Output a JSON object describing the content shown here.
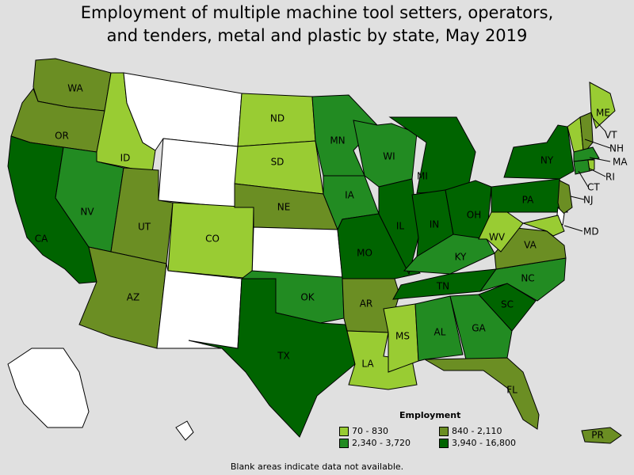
{
  "title_line1": "Employment of multiple machine tool setters, operators,",
  "title_line2": "and tenders, metal and plastic by state, May 2019",
  "legend": {
    "title": "Employment",
    "items": [
      {
        "label": "70 - 830",
        "color": "#99cc33",
        "key": "c1"
      },
      {
        "label": "840 - 2,110",
        "color": "#6b8e23",
        "key": "c2"
      },
      {
        "label": "2,340 - 3,720",
        "color": "#228b22",
        "key": "c3"
      },
      {
        "label": "3,940 - 16,800",
        "color": "#006400",
        "key": "c4"
      }
    ]
  },
  "colors": {
    "none": "#ffffff",
    "c1": "#99cc33",
    "c2": "#6b8e23",
    "c3": "#228b22",
    "c4": "#006400",
    "background": "#e0e0e0"
  },
  "footnote": "Blank areas indicate data not available.",
  "states": [
    {
      "abbr": "WA",
      "label": "WA",
      "cls": "c2"
    },
    {
      "abbr": "OR",
      "label": "OR",
      "cls": "c2"
    },
    {
      "abbr": "CA",
      "label": "CA",
      "cls": "c4"
    },
    {
      "abbr": "ID",
      "label": "ID",
      "cls": "c1"
    },
    {
      "abbr": "NV",
      "label": "NV",
      "cls": "c3"
    },
    {
      "abbr": "MT",
      "label": "",
      "cls": "none"
    },
    {
      "abbr": "WY",
      "label": "",
      "cls": "none"
    },
    {
      "abbr": "UT",
      "label": "UT",
      "cls": "c2"
    },
    {
      "abbr": "AZ",
      "label": "AZ",
      "cls": "c2"
    },
    {
      "abbr": "CO",
      "label": "CO",
      "cls": "c1"
    },
    {
      "abbr": "NM",
      "label": "",
      "cls": "none"
    },
    {
      "abbr": "ND",
      "label": "ND",
      "cls": "c1"
    },
    {
      "abbr": "SD",
      "label": "SD",
      "cls": "c1"
    },
    {
      "abbr": "NE",
      "label": "NE",
      "cls": "c2"
    },
    {
      "abbr": "KS",
      "label": "",
      "cls": "none"
    },
    {
      "abbr": "OK",
      "label": "OK",
      "cls": "c3"
    },
    {
      "abbr": "TX",
      "label": "TX",
      "cls": "c4"
    },
    {
      "abbr": "MN",
      "label": "MN",
      "cls": "c3"
    },
    {
      "abbr": "IA",
      "label": "IA",
      "cls": "c3"
    },
    {
      "abbr": "MO",
      "label": "MO",
      "cls": "c4"
    },
    {
      "abbr": "AR",
      "label": "AR",
      "cls": "c2"
    },
    {
      "abbr": "LA",
      "label": "LA",
      "cls": "c1"
    },
    {
      "abbr": "WI",
      "label": "WI",
      "cls": "c3"
    },
    {
      "abbr": "IL",
      "label": "IL",
      "cls": "c4"
    },
    {
      "abbr": "MI",
      "label": "MI",
      "cls": "c4"
    },
    {
      "abbr": "IN",
      "label": "IN",
      "cls": "c4"
    },
    {
      "abbr": "OH",
      "label": "OH",
      "cls": "c4"
    },
    {
      "abbr": "KY",
      "label": "KY",
      "cls": "c3"
    },
    {
      "abbr": "TN",
      "label": "TN",
      "cls": "c4"
    },
    {
      "abbr": "MS",
      "label": "MS",
      "cls": "c1"
    },
    {
      "abbr": "AL",
      "label": "AL",
      "cls": "c3"
    },
    {
      "abbr": "GA",
      "label": "GA",
      "cls": "c3"
    },
    {
      "abbr": "FL",
      "label": "FL",
      "cls": "c2"
    },
    {
      "abbr": "SC",
      "label": "SC",
      "cls": "c4"
    },
    {
      "abbr": "NC",
      "label": "NC",
      "cls": "c3"
    },
    {
      "abbr": "VA",
      "label": "VA",
      "cls": "c2"
    },
    {
      "abbr": "WV",
      "label": "WV",
      "cls": "c1"
    },
    {
      "abbr": "PA",
      "label": "PA",
      "cls": "c4"
    },
    {
      "abbr": "NY",
      "label": "NY",
      "cls": "c4"
    },
    {
      "abbr": "ME",
      "label": "ME",
      "cls": "c1"
    },
    {
      "abbr": "VT",
      "label": "VT",
      "cls": "c1"
    },
    {
      "abbr": "NH",
      "label": "NH",
      "cls": "c2"
    },
    {
      "abbr": "MA",
      "label": "MA",
      "cls": "c3"
    },
    {
      "abbr": "CT",
      "label": "CT",
      "cls": "c3"
    },
    {
      "abbr": "RI",
      "label": "RI",
      "cls": "c1"
    },
    {
      "abbr": "NJ",
      "label": "NJ",
      "cls": "c2"
    },
    {
      "abbr": "DE",
      "label": "",
      "cls": "none"
    },
    {
      "abbr": "MD",
      "label": "MD",
      "cls": "c1"
    },
    {
      "abbr": "AK",
      "label": "",
      "cls": "none"
    },
    {
      "abbr": "HI",
      "label": "",
      "cls": "none"
    },
    {
      "abbr": "PR",
      "label": "PR",
      "cls": "c2"
    }
  ]
}
